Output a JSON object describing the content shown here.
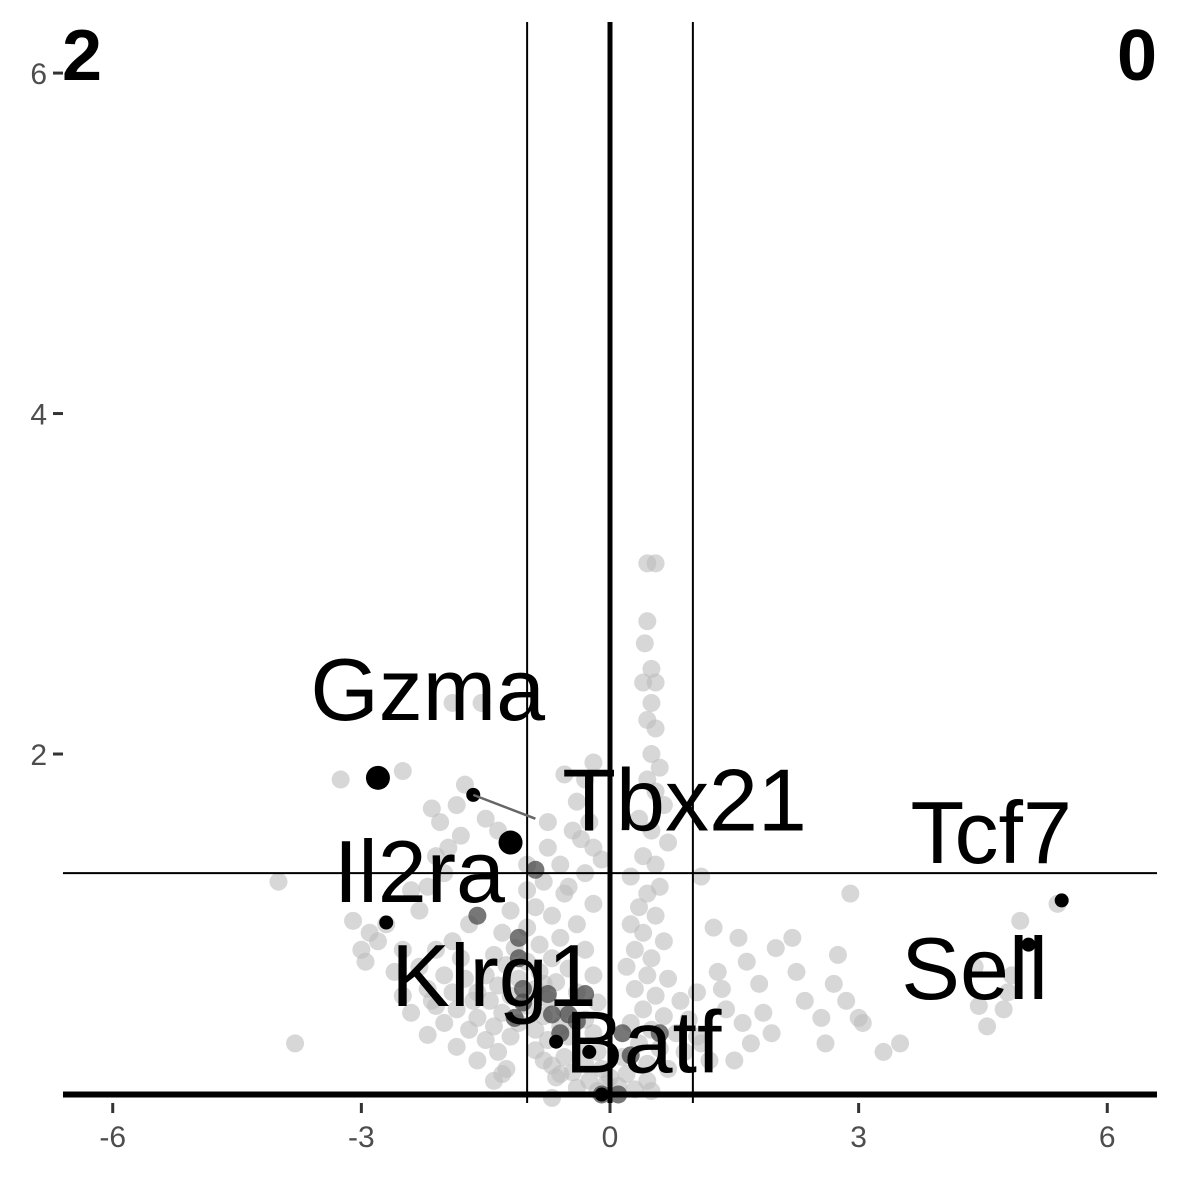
{
  "chart_data": {
    "type": "scatter",
    "title": "",
    "xlabel": "",
    "ylabel": "",
    "xlim": [
      -6.6,
      6.6
    ],
    "ylim": [
      -0.05,
      6.3
    ],
    "x_ticks": [
      -6,
      -3,
      0,
      3,
      6
    ],
    "y_ticks": [
      2,
      4,
      6
    ],
    "x_tick_labels": [
      "-6",
      "-3",
      "0",
      "3",
      "6"
    ],
    "y_tick_labels": [
      "2",
      "4",
      "6"
    ],
    "grid": false,
    "legend": "none",
    "corner_labels": {
      "left": "2",
      "right": "0"
    },
    "threshold_lines": {
      "vertical_thin": [
        -1,
        1
      ],
      "vertical_thick": [
        0
      ],
      "horizontal_thin": [
        1.3
      ],
      "horizontal_thick": [
        0
      ]
    },
    "colors": {
      "background_points": "#bdbdbd",
      "dark_points": "#4a4a4a",
      "highlight_points": "#000000",
      "lines": "#000000"
    },
    "highlighted_genes": [
      {
        "name": "Gzma",
        "x": -2.8,
        "y": 1.86,
        "label_x": -2.2,
        "label_y": 2.2
      },
      {
        "name": "Tbx21",
        "x": -1.2,
        "y": 1.48,
        "label_x": 0.9,
        "label_y": 1.55
      },
      {
        "name": "Il2ra",
        "x": -2.7,
        "y": 1.01,
        "label_x": -2.3,
        "label_y": 1.13
      },
      {
        "name": "Tcf7",
        "x": 5.45,
        "y": 1.14,
        "label_x": 4.6,
        "label_y": 1.36
      },
      {
        "name": "Sell",
        "x": 5.05,
        "y": 0.88,
        "label_x": 4.4,
        "label_y": 0.56
      },
      {
        "name": "Klrg1",
        "x": -0.65,
        "y": 0.31,
        "label_x": -1.4,
        "label_y": 0.52
      },
      {
        "name": "Batf",
        "x": -0.25,
        "y": 0.25,
        "label_x": 0.4,
        "label_y": 0.13
      },
      {
        "name": "",
        "x": -1.65,
        "y": 1.76
      },
      {
        "name": "",
        "x": -0.1,
        "y": 0.0
      }
    ],
    "dark_points": [
      [
        -0.9,
        1.32
      ],
      [
        -1.6,
        1.05
      ],
      [
        -1.1,
        0.92
      ],
      [
        -1.1,
        0.8
      ],
      [
        -1.05,
        0.62
      ],
      [
        -0.75,
        0.59
      ],
      [
        -0.3,
        0.59
      ],
      [
        -1.05,
        0.54
      ],
      [
        -0.7,
        0.47
      ],
      [
        -0.5,
        0.47
      ],
      [
        -1.15,
        0.45
      ],
      [
        -0.4,
        0.43
      ],
      [
        -0.6,
        0.36
      ],
      [
        0.15,
        0.36
      ],
      [
        0.6,
        0.36
      ],
      [
        0.25,
        0.23
      ],
      [
        -0.1,
        0.0
      ],
      [
        0.1,
        0.0
      ]
    ],
    "gray_points": [
      [
        0.45,
        3.12
      ],
      [
        0.55,
        3.12
      ],
      [
        0.45,
        2.78
      ],
      [
        0.42,
        2.65
      ],
      [
        0.5,
        2.5
      ],
      [
        0.4,
        2.42
      ],
      [
        0.55,
        2.42
      ],
      [
        0.5,
        2.3
      ],
      [
        0.45,
        2.2
      ],
      [
        0.55,
        2.15
      ],
      [
        0.5,
        2.0
      ],
      [
        0.6,
        1.92
      ],
      [
        0.45,
        1.85
      ],
      [
        0.55,
        1.78
      ],
      [
        0.65,
        1.7
      ],
      [
        0.35,
        1.62
      ],
      [
        0.5,
        1.55
      ],
      [
        0.7,
        1.48
      ],
      [
        0.4,
        1.4
      ],
      [
        0.55,
        1.35
      ],
      [
        0.25,
        1.28
      ],
      [
        0.6,
        1.22
      ],
      [
        0.45,
        1.18
      ],
      [
        0.35,
        1.1
      ],
      [
        0.55,
        1.05
      ],
      [
        0.25,
        1.0
      ],
      [
        0.4,
        0.95
      ],
      [
        0.65,
        0.9
      ],
      [
        0.3,
        0.85
      ],
      [
        0.5,
        0.8
      ],
      [
        0.2,
        0.75
      ],
      [
        0.45,
        0.7
      ],
      [
        0.7,
        0.68
      ],
      [
        0.3,
        0.62
      ],
      [
        0.55,
        0.58
      ],
      [
        0.85,
        0.55
      ],
      [
        0.4,
        0.5
      ],
      [
        0.65,
        0.46
      ],
      [
        0.95,
        0.44
      ],
      [
        0.25,
        0.42
      ],
      [
        0.5,
        0.38
      ],
      [
        0.8,
        0.36
      ],
      [
        1.05,
        0.34
      ],
      [
        0.35,
        0.3
      ],
      [
        0.6,
        0.27
      ],
      [
        0.9,
        0.25
      ],
      [
        0.15,
        0.22
      ],
      [
        0.45,
        0.18
      ],
      [
        0.7,
        0.15
      ],
      [
        0.2,
        0.12
      ],
      [
        0.45,
        0.08
      ],
      [
        0.1,
        0.05
      ],
      [
        0.3,
        0.03
      ],
      [
        0.5,
        0.02
      ],
      [
        1.1,
        1.28
      ],
      [
        1.25,
        0.98
      ],
      [
        1.3,
        0.72
      ],
      [
        1.55,
        0.92
      ],
      [
        1.65,
        0.78
      ],
      [
        1.8,
        0.65
      ],
      [
        2.0,
        0.86
      ],
      [
        2.2,
        0.92
      ],
      [
        1.4,
        0.5
      ],
      [
        1.6,
        0.42
      ],
      [
        1.85,
        0.48
      ],
      [
        1.95,
        0.36
      ],
      [
        2.25,
        0.72
      ],
      [
        2.35,
        0.55
      ],
      [
        2.55,
        0.45
      ],
      [
        2.7,
        0.65
      ],
      [
        2.85,
        0.55
      ],
      [
        2.9,
        1.18
      ],
      [
        3.0,
        0.45
      ],
      [
        3.3,
        0.25
      ],
      [
        2.6,
        0.3
      ],
      [
        3.05,
        0.42
      ],
      [
        1.2,
        0.2
      ],
      [
        1.5,
        0.2
      ],
      [
        1.1,
        0.3
      ],
      [
        1.35,
        0.62
      ],
      [
        1.05,
        0.6
      ],
      [
        1.7,
        0.3
      ],
      [
        2.75,
        0.82
      ],
      [
        3.5,
        0.3
      ],
      [
        4.4,
        0.75
      ],
      [
        4.45,
        0.52
      ],
      [
        4.55,
        0.4
      ],
      [
        4.75,
        0.5
      ],
      [
        4.85,
        0.7
      ],
      [
        4.95,
        1.02
      ],
      [
        5.4,
        1.12
      ],
      [
        4.8,
        0.6
      ],
      [
        -0.4,
        1.72
      ],
      [
        -0.25,
        1.6
      ],
      [
        -0.45,
        1.55
      ],
      [
        -0.75,
        1.45
      ],
      [
        -0.6,
        1.35
      ],
      [
        -0.3,
        1.3
      ],
      [
        -0.8,
        1.25
      ],
      [
        -1.0,
        1.2
      ],
      [
        -0.55,
        1.18
      ],
      [
        -0.2,
        1.12
      ],
      [
        -0.9,
        1.1
      ],
      [
        -1.2,
        1.08
      ],
      [
        -0.7,
        1.05
      ],
      [
        -0.4,
        1.0
      ],
      [
        -1.0,
        0.98
      ],
      [
        -1.3,
        0.95
      ],
      [
        -0.6,
        0.92
      ],
      [
        -0.85,
        0.88
      ],
      [
        -1.15,
        0.86
      ],
      [
        -0.3,
        0.85
      ],
      [
        -1.4,
        0.82
      ],
      [
        -0.7,
        0.8
      ],
      [
        -1.0,
        0.78
      ],
      [
        -1.25,
        0.76
      ],
      [
        -0.5,
        0.74
      ],
      [
        -0.85,
        0.72
      ],
      [
        -1.5,
        0.7
      ],
      [
        -0.2,
        0.7
      ],
      [
        -1.1,
        0.68
      ],
      [
        -0.65,
        0.66
      ],
      [
        -1.35,
        0.64
      ],
      [
        -0.9,
        0.62
      ],
      [
        -1.6,
        0.6
      ],
      [
        -0.4,
        0.6
      ],
      [
        -1.2,
        0.58
      ],
      [
        -0.75,
        0.56
      ],
      [
        -1.45,
        0.55
      ],
      [
        -0.15,
        0.54
      ],
      [
        -1.0,
        0.52
      ],
      [
        -0.55,
        0.5
      ],
      [
        -1.3,
        0.48
      ],
      [
        -0.8,
        0.46
      ],
      [
        -0.3,
        0.44
      ],
      [
        -1.1,
        0.42
      ],
      [
        -0.6,
        0.4
      ],
      [
        -1.4,
        0.4
      ],
      [
        -0.9,
        0.38
      ],
      [
        -0.2,
        0.36
      ],
      [
        -0.5,
        0.34
      ],
      [
        -1.2,
        0.34
      ],
      [
        -0.75,
        0.32
      ],
      [
        -0.35,
        0.28
      ],
      [
        -0.9,
        0.26
      ],
      [
        -0.15,
        0.25
      ],
      [
        -0.55,
        0.22
      ],
      [
        -0.8,
        0.2
      ],
      [
        -0.3,
        0.18
      ],
      [
        -0.1,
        0.15
      ],
      [
        -0.45,
        0.13
      ],
      [
        -0.65,
        0.1
      ],
      [
        -0.25,
        0.08
      ],
      [
        -0.05,
        0.06
      ],
      [
        -0.4,
        0.04
      ],
      [
        -0.15,
        0.02
      ],
      [
        -0.7,
        0.17
      ],
      [
        -1.7,
        1.0
      ],
      [
        -1.9,
        0.9
      ],
      [
        -2.1,
        0.85
      ],
      [
        -1.8,
        0.8
      ],
      [
        -2.3,
        0.75
      ],
      [
        -2.0,
        0.7
      ],
      [
        -1.75,
        0.68
      ],
      [
        -2.2,
        0.62
      ],
      [
        -1.9,
        0.6
      ],
      [
        -2.5,
        0.58
      ],
      [
        -1.65,
        0.55
      ],
      [
        -2.1,
        0.52
      ],
      [
        -1.85,
        0.5
      ],
      [
        -2.4,
        0.48
      ],
      [
        -1.6,
        0.45
      ],
      [
        -2.0,
        0.42
      ],
      [
        -1.7,
        0.38
      ],
      [
        -2.2,
        0.35
      ],
      [
        -1.5,
        0.32
      ],
      [
        -1.85,
        0.28
      ],
      [
        -1.35,
        0.25
      ],
      [
        -1.6,
        0.2
      ],
      [
        -1.25,
        0.15
      ],
      [
        -1.4,
        0.08
      ],
      [
        -2.1,
        1.4
      ],
      [
        -2.2,
        1.22
      ],
      [
        -2.4,
        1.2
      ],
      [
        -2.7,
        1.0
      ],
      [
        -2.9,
        0.95
      ],
      [
        -3.1,
        1.02
      ],
      [
        -2.8,
        0.9
      ],
      [
        -2.5,
        0.85
      ],
      [
        -3.0,
        0.85
      ],
      [
        -2.95,
        0.78
      ],
      [
        -2.6,
        0.72
      ],
      [
        -2.3,
        1.08
      ],
      [
        -2.0,
        1.3
      ],
      [
        -1.8,
        1.52
      ],
      [
        -2.05,
        1.6
      ],
      [
        -1.95,
        1.45
      ],
      [
        -1.75,
        1.82
      ],
      [
        -1.85,
        1.7
      ],
      [
        -1.5,
        1.62
      ],
      [
        -1.35,
        1.55
      ],
      [
        -2.15,
        1.68
      ],
      [
        -3.25,
        1.85
      ],
      [
        -2.5,
        1.9
      ],
      [
        -1.9,
        2.3
      ],
      [
        -1.55,
        2.3
      ],
      [
        -4.0,
        1.25
      ],
      [
        -3.8,
        0.3
      ],
      [
        -2.15,
        0.55
      ],
      [
        -1.3,
        0.12
      ],
      [
        -0.7,
        -0.02
      ],
      [
        -0.8,
        0.65
      ],
      [
        -1.0,
        1.35
      ],
      [
        -0.75,
        1.6
      ],
      [
        -0.2,
        1.45
      ],
      [
        -0.3,
        1.85
      ],
      [
        -0.55,
        1.88
      ],
      [
        -0.2,
        1.95
      ],
      [
        -0.1,
        1.38
      ],
      [
        -0.5,
        1.22
      ],
      [
        -0.35,
        1.5
      ],
      [
        -0.6,
        0.12
      ],
      [
        0.0,
        0.1
      ]
    ]
  }
}
